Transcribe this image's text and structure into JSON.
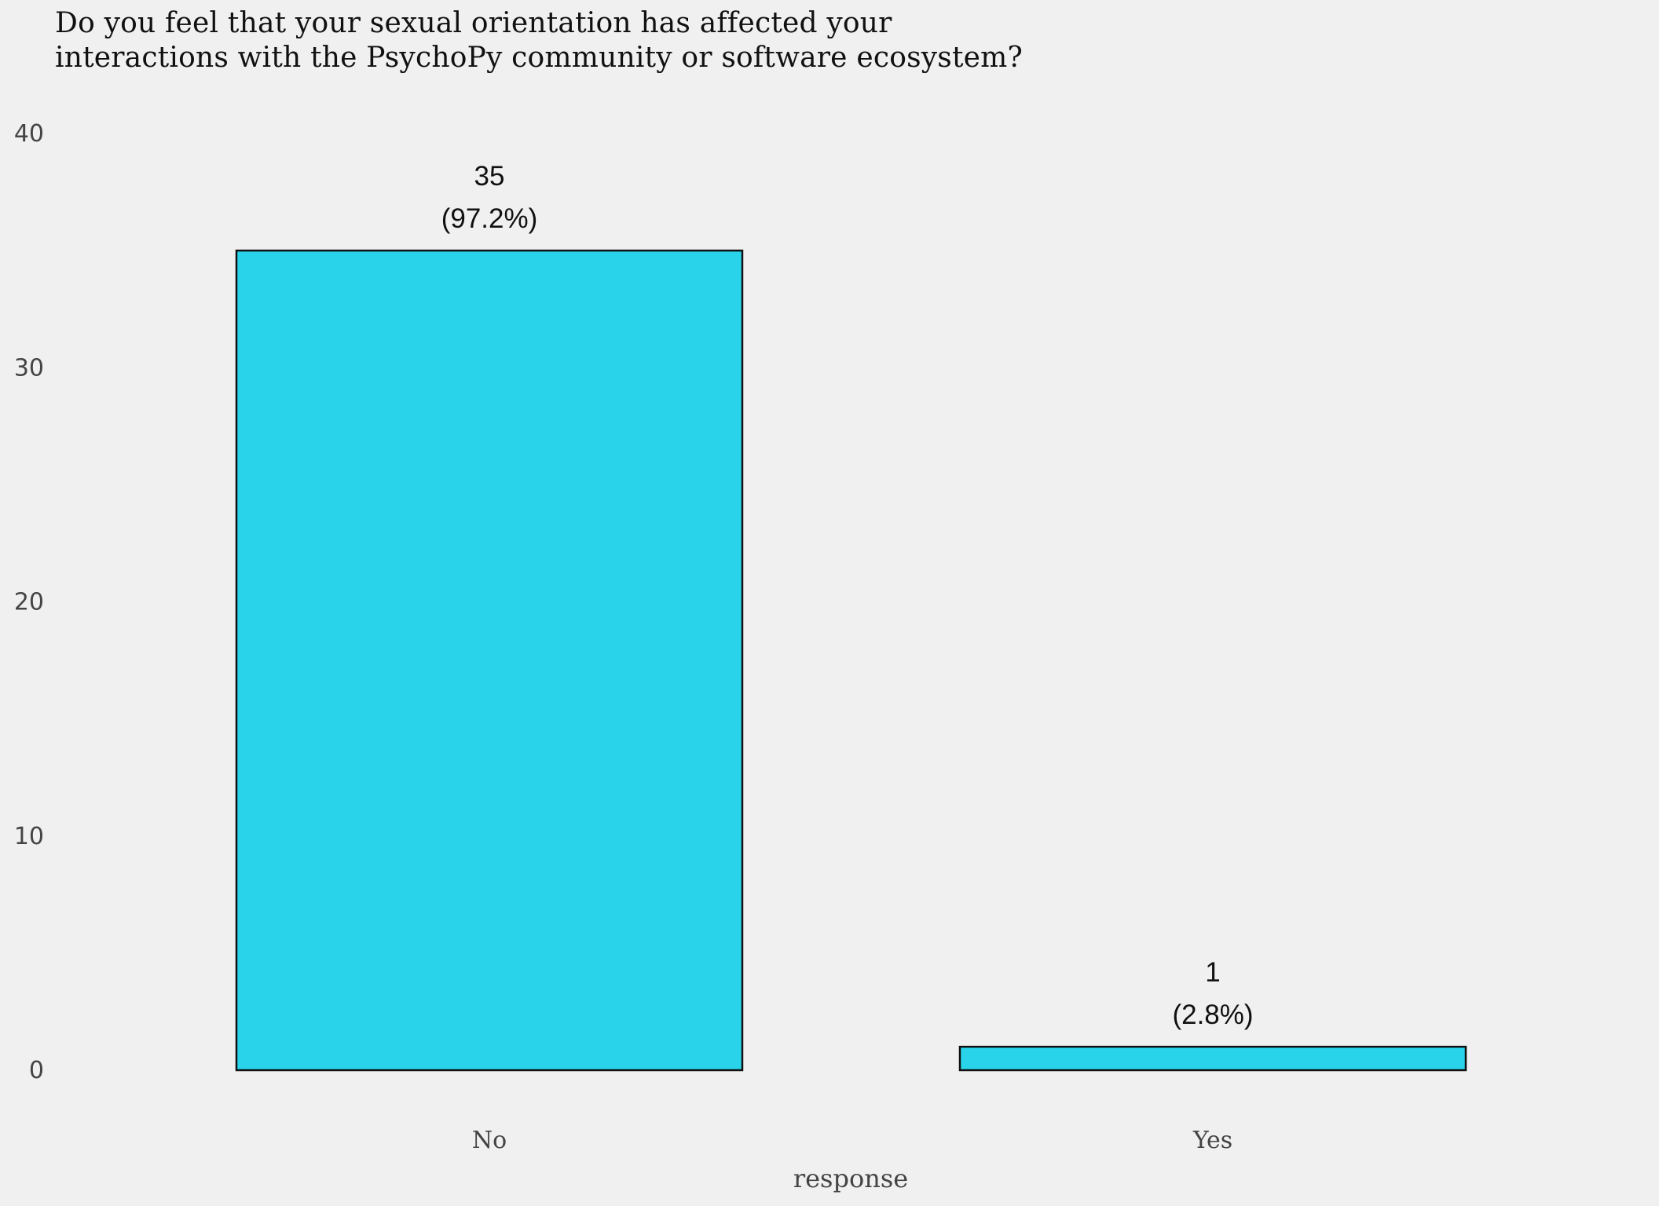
{
  "chart_data": {
    "type": "bar",
    "title": [
      "Do you feel that your sexual orientation has affected your",
      "interactions with the PsychoPy community or software ecosystem?"
    ],
    "xlabel": "response",
    "ylabel": "",
    "categories": [
      "No",
      "Yes"
    ],
    "values": [
      35,
      1
    ],
    "value_labels": [
      "35",
      "1"
    ],
    "percent_labels": [
      "(97.2%)",
      "(2.8%)"
    ],
    "ylim": [
      0,
      40
    ],
    "yticks": [
      0,
      10,
      20,
      30,
      40
    ],
    "ytick_labels": [
      "0",
      "10",
      "20",
      "30",
      "40"
    ],
    "grid": false,
    "legend": "none",
    "colors": {
      "bar_fill": "#29d4eb",
      "bar_stroke": "#111111",
      "background": "#f0f0f0"
    }
  }
}
